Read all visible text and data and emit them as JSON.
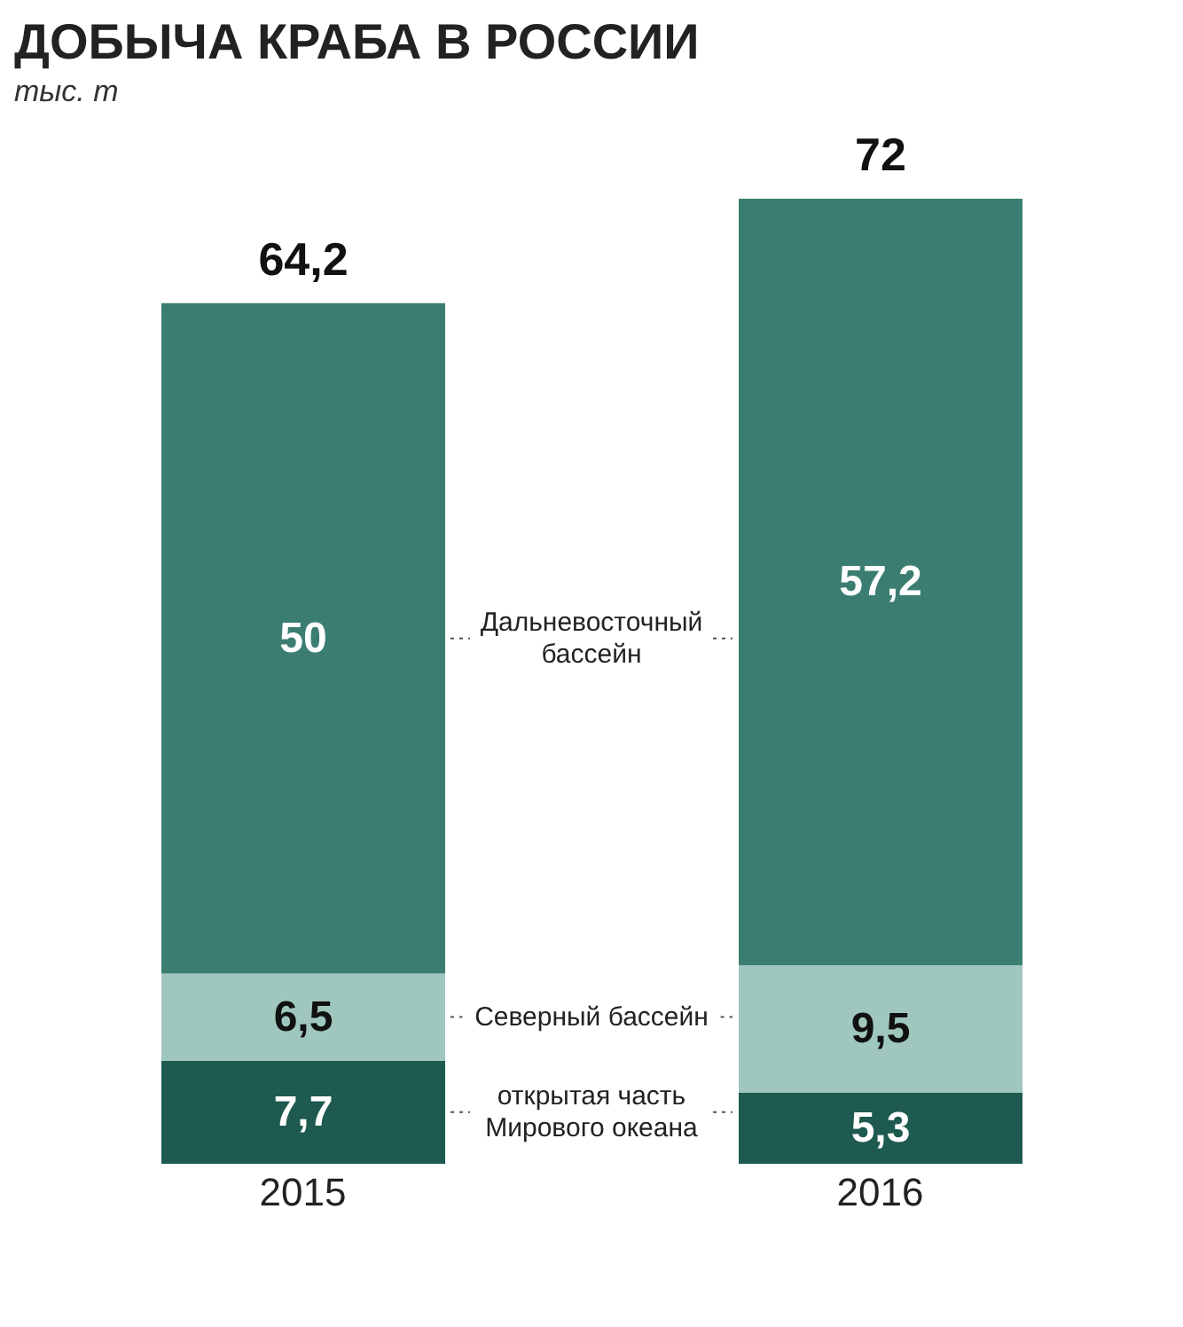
{
  "chart_data": {
    "type": "bar",
    "title": "ДОБЫЧА КРАБА В РОССИИ",
    "subtitle": "тыс. т",
    "categories": [
      "2015",
      "2016"
    ],
    "stacked": true,
    "legend": false,
    "series": [
      {
        "name": "открытая часть Мирового океана",
        "color": "#1e5a4f",
        "values": [
          7.7,
          5.3
        ],
        "value_labels": [
          "7,7",
          "5,3"
        ]
      },
      {
        "name": "Северный бассейн",
        "color": "#9fc7be",
        "values": [
          6.5,
          9.5
        ],
        "value_labels": [
          "6,5",
          "9,5"
        ]
      },
      {
        "name": "Дальневосточный бассейн",
        "color": "#3b7e71",
        "values": [
          50,
          57.2
        ],
        "value_labels": [
          "50",
          "57,2"
        ]
      }
    ],
    "totals": [
      "64,2",
      "72"
    ]
  }
}
